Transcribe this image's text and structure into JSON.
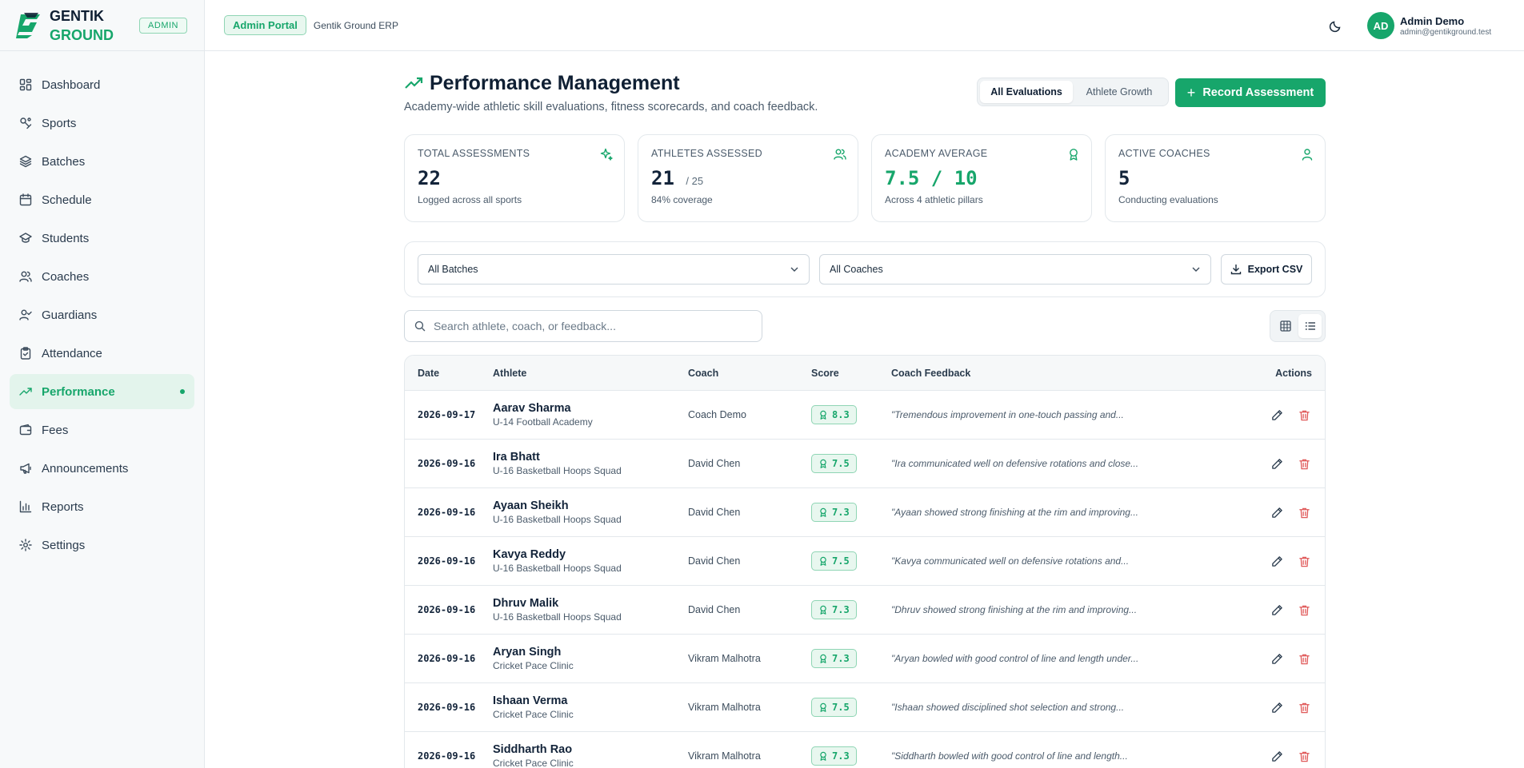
{
  "brand": {
    "line1": "GENTIK",
    "line2": "GROUND",
    "role_badge": "ADMIN"
  },
  "sidebar": {
    "items": [
      {
        "label": "Dashboard",
        "icon": "dashboard-icon"
      },
      {
        "label": "Sports",
        "icon": "sports-icon"
      },
      {
        "label": "Batches",
        "icon": "layers-icon"
      },
      {
        "label": "Schedule",
        "icon": "calendar-icon"
      },
      {
        "label": "Students",
        "icon": "graduation-cap-icon"
      },
      {
        "label": "Coaches",
        "icon": "users-icon"
      },
      {
        "label": "Guardians",
        "icon": "user-check-icon"
      },
      {
        "label": "Attendance",
        "icon": "clipboard-check-icon"
      },
      {
        "label": "Performance",
        "icon": "trending-up-icon",
        "active": true
      },
      {
        "label": "Fees",
        "icon": "wallet-icon"
      },
      {
        "label": "Announcements",
        "icon": "megaphone-icon"
      },
      {
        "label": "Reports",
        "icon": "bar-chart-icon"
      },
      {
        "label": "Settings",
        "icon": "gear-icon"
      }
    ]
  },
  "topbar": {
    "portal_badge": "Admin Portal",
    "app_name": "Gentik Ground ERP"
  },
  "user": {
    "initials": "AD",
    "name": "Admin Demo",
    "email": "admin@gentikground.test"
  },
  "page": {
    "title": "Performance Management",
    "subtitle": "Academy-wide athletic skill evaluations, fitness scorecards, and coach feedback.",
    "tabs": [
      {
        "label": "All Evaluations",
        "active": true
      },
      {
        "label": "Athlete Growth",
        "active": false
      }
    ],
    "primary_action": "Record Assessment"
  },
  "stats": [
    {
      "label": "TOTAL ASSESSMENTS",
      "value": "22",
      "suffix": "",
      "sub": "Logged across all sports",
      "icon": "sparkle-icon"
    },
    {
      "label": "ATHLETES ASSESSED",
      "value": "21",
      "suffix": "/ 25",
      "sub": "84% coverage",
      "icon": "users-icon"
    },
    {
      "label": "ACADEMY AVERAGE",
      "value": "7.5 / 10",
      "suffix": "",
      "sub": "Across 4 athletic pillars",
      "icon": "award-icon"
    },
    {
      "label": "ACTIVE COACHES",
      "value": "5",
      "suffix": "",
      "sub": "Conducting evaluations",
      "icon": "user-icon"
    }
  ],
  "filters": {
    "batch": "All Batches",
    "coach": "All Coaches",
    "export_label": "Export CSV"
  },
  "search": {
    "placeholder": "Search athlete, coach, or feedback...",
    "value": ""
  },
  "colors": {
    "accent": "#17a66b",
    "danger": "#e05a5a"
  },
  "table": {
    "headers": {
      "date": "Date",
      "athlete": "Athlete",
      "coach": "Coach",
      "score": "Score",
      "feedback": "Coach Feedback",
      "actions": "Actions"
    },
    "rows": [
      {
        "date": "2026-09-17",
        "athlete": "Aarav Sharma",
        "batch": "U-14 Football Academy",
        "coach": "Coach Demo",
        "score": "8.3",
        "feedback": "\"Tremendous improvement in one-touch passing and..."
      },
      {
        "date": "2026-09-16",
        "athlete": "Ira Bhatt",
        "batch": "U-16 Basketball Hoops Squad",
        "coach": "David Chen",
        "score": "7.5",
        "feedback": "\"Ira communicated well on defensive rotations and close..."
      },
      {
        "date": "2026-09-16",
        "athlete": "Ayaan Sheikh",
        "batch": "U-16 Basketball Hoops Squad",
        "coach": "David Chen",
        "score": "7.3",
        "feedback": "\"Ayaan showed strong finishing at the rim and improving..."
      },
      {
        "date": "2026-09-16",
        "athlete": "Kavya Reddy",
        "batch": "U-16 Basketball Hoops Squad",
        "coach": "David Chen",
        "score": "7.5",
        "feedback": "\"Kavya communicated well on defensive rotations and..."
      },
      {
        "date": "2026-09-16",
        "athlete": "Dhruv Malik",
        "batch": "U-16 Basketball Hoops Squad",
        "coach": "David Chen",
        "score": "7.3",
        "feedback": "\"Dhruv showed strong finishing at the rim and improving..."
      },
      {
        "date": "2026-09-16",
        "athlete": "Aryan Singh",
        "batch": "Cricket Pace Clinic",
        "coach": "Vikram Malhotra",
        "score": "7.3",
        "feedback": "\"Aryan bowled with good control of line and length under..."
      },
      {
        "date": "2026-09-16",
        "athlete": "Ishaan Verma",
        "batch": "Cricket Pace Clinic",
        "coach": "Vikram Malhotra",
        "score": "7.5",
        "feedback": "\"Ishaan showed disciplined shot selection and strong..."
      },
      {
        "date": "2026-09-16",
        "athlete": "Siddharth Rao",
        "batch": "Cricket Pace Clinic",
        "coach": "Vikram Malhotra",
        "score": "7.3",
        "feedback": "\"Siddharth bowled with good control of line and length..."
      }
    ]
  }
}
